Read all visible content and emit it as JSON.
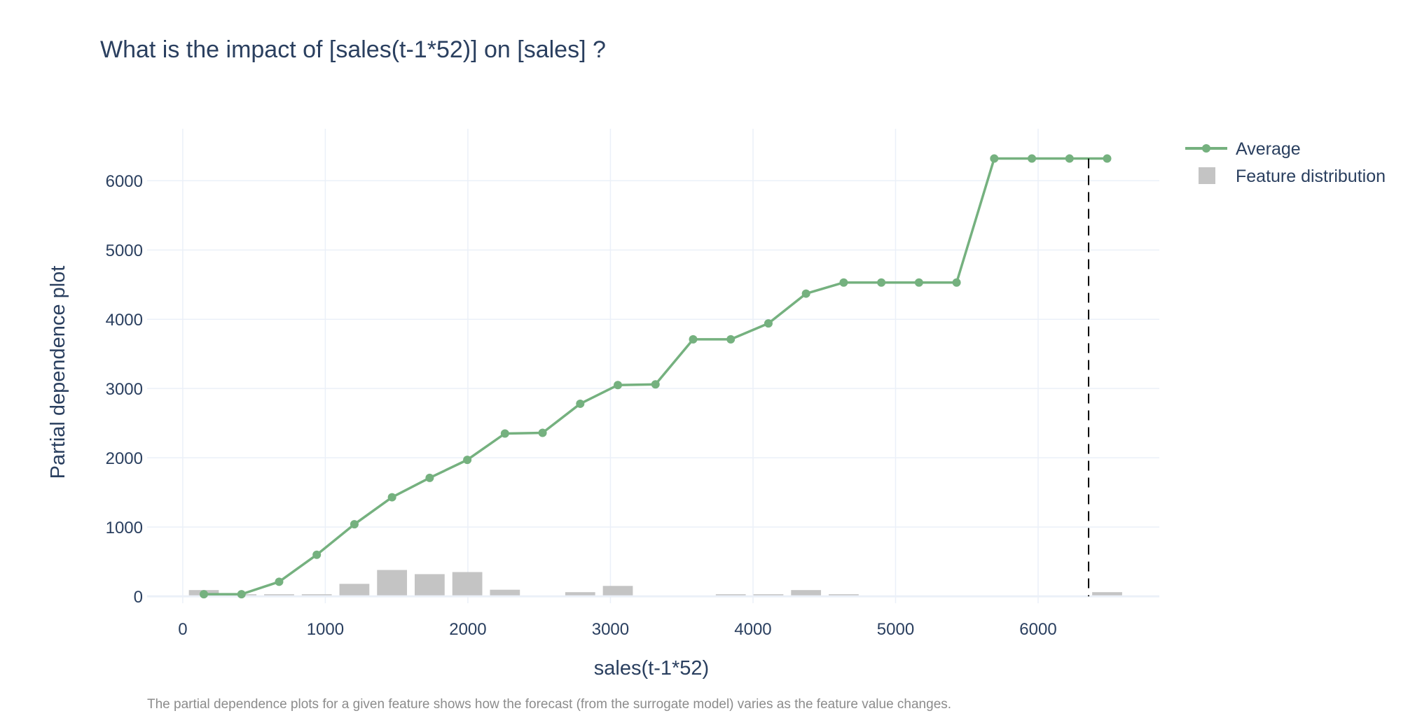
{
  "chart_data": {
    "type": "line",
    "title": "What is the impact of [sales(t-1*52)] on [sales] ?",
    "xlabel": "sales(t-1*52)",
    "ylabel": "Partial dependence plot",
    "xlim": [
      -250,
      6850
    ],
    "ylim": [
      -100,
      6750
    ],
    "x_ticks": [
      0,
      1000,
      2000,
      3000,
      4000,
      5000,
      6000
    ],
    "y_ticks": [
      0,
      1000,
      2000,
      3000,
      4000,
      5000,
      6000
    ],
    "grid": true,
    "legend_position": "top-right",
    "series": [
      {
        "name": "Average",
        "type": "line",
        "color": "#75b17f",
        "x": [
          148,
          412,
          676,
          940,
          1204,
          1468,
          1732,
          1996,
          2260,
          2524,
          2788,
          3052,
          3316,
          3580,
          3844,
          4108,
          4372,
          4636,
          4900,
          5164,
          5428,
          5692,
          5956,
          6220,
          6484
        ],
        "y": [
          30,
          30,
          210,
          600,
          1040,
          1430,
          1710,
          1970,
          2350,
          2360,
          2780,
          3050,
          3060,
          3710,
          3710,
          3940,
          4370,
          4530,
          4530,
          4530,
          4530,
          6320,
          6320,
          6320,
          6320
        ]
      },
      {
        "name": "Feature distribution",
        "type": "bar",
        "color": "#c4c4c4",
        "x": [
          148,
          412,
          676,
          940,
          1204,
          1468,
          1732,
          1996,
          2260,
          2788,
          3052,
          3844,
          4108,
          4372,
          4636,
          6484
        ],
        "y": [
          90,
          30,
          30,
          30,
          180,
          380,
          320,
          350,
          95,
          60,
          150,
          30,
          30,
          90,
          30,
          60
        ],
        "bar_width": 210
      }
    ],
    "reference_line": {
      "x": 6354,
      "style": "dashed",
      "color": "#000000"
    }
  },
  "footnote": "The partial dependence plots for a given feature shows how the forecast  (from the surrogate model) varies as the feature value changes."
}
